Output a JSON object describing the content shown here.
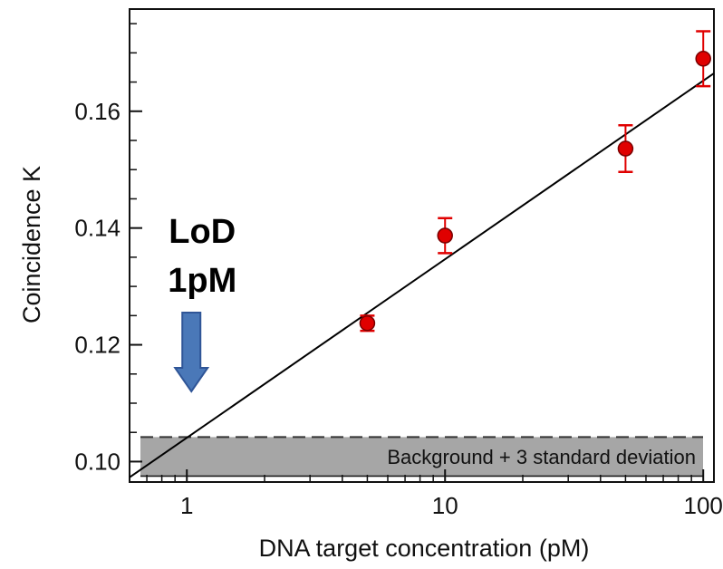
{
  "chart_data": {
    "type": "scatter",
    "xlabel": "DNA target concentration (pM)",
    "ylabel": "Coincidence K",
    "x_scale": "log",
    "xlim": [
      0.6,
      110
    ],
    "ylim": [
      0.0965,
      0.1775
    ],
    "x_ticks": [
      1,
      10,
      100
    ],
    "x_tick_labels": [
      "1",
      "10",
      "100"
    ],
    "y_ticks": [
      0.1,
      0.12,
      0.14,
      0.16
    ],
    "y_tick_labels": [
      "0.10",
      "0.12",
      "0.14",
      "0.16"
    ],
    "grid": false,
    "points": [
      {
        "x": 5,
        "y": 0.1237,
        "err": 0.0013
      },
      {
        "x": 10,
        "y": 0.1387,
        "err": 0.003
      },
      {
        "x": 50,
        "y": 0.1536,
        "err": 0.004
      },
      {
        "x": 100,
        "y": 0.169,
        "err": 0.0047
      }
    ],
    "point_color": "#e00000",
    "fit_line": {
      "x": [
        0.6,
        110
      ],
      "y": [
        0.0973,
        0.1665
      ],
      "color": "#000000"
    },
    "background_band": {
      "y_min": 0.0975,
      "y_max": 0.1042,
      "label": "Background + 3 standard deviation",
      "color": "#a6a6a6"
    },
    "annotation": {
      "line1": "LoD",
      "line2": "1pM",
      "arrow_x": 1,
      "arrow_color": "#4a78b8"
    }
  }
}
